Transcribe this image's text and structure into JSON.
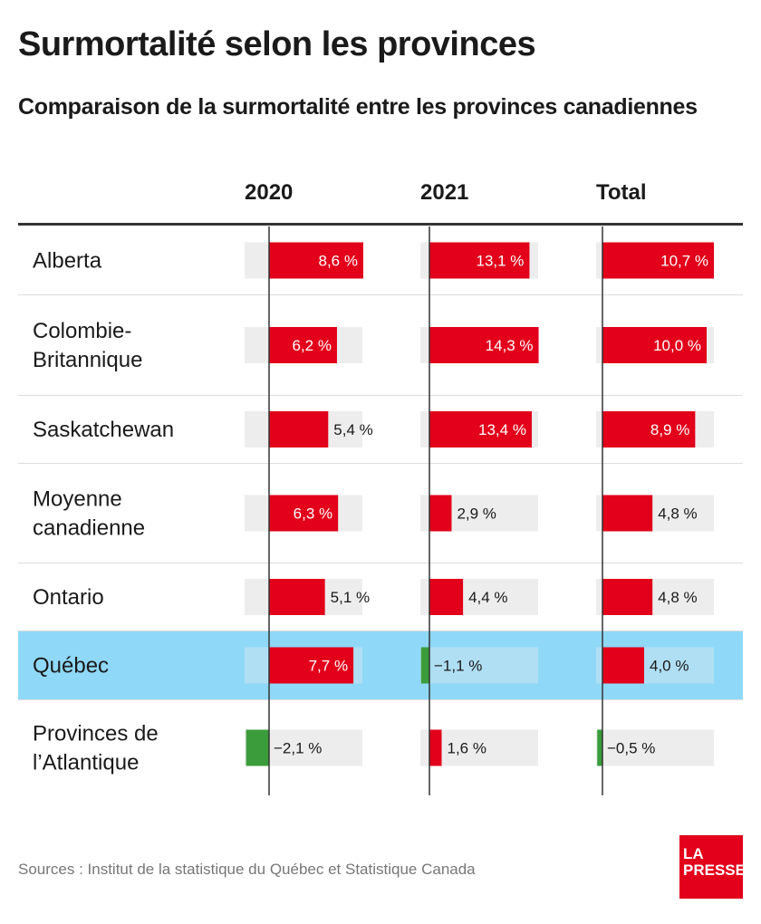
{
  "title": "Surmortalité selon les provinces",
  "subtitle": "Comparaison de la surmortalité entre les provinces canadiennes",
  "source": "Sources : Institut de la statistique du Québec et Statistique Canada",
  "logo": {
    "line1": "LA",
    "line2": "PRESSE"
  },
  "colors": {
    "positive": "#e2001a",
    "negative": "#3a9c3a",
    "track": "#ededed",
    "highlight": "#8fd8f8",
    "axis": "#333333"
  },
  "chart_data": {
    "type": "bar",
    "columns": [
      "2020",
      "2021",
      "Total"
    ],
    "categories": [
      "Alberta",
      "Colombie-\nBritannique",
      "Saskatchewan",
      "Moyenne\ncanadienne",
      "Ontario",
      "Québec",
      "Provinces de\nl’Atlantique"
    ],
    "highlight": "Québec",
    "series": [
      {
        "name": "2020",
        "values": [
          8.6,
          6.2,
          5.4,
          6.3,
          5.1,
          7.7,
          -2.1
        ],
        "labels": [
          "8,6 %",
          "6,2 %",
          "5,4 %",
          "6,3 %",
          "5,1 %",
          "7,7 %",
          "−2,1 %"
        ]
      },
      {
        "name": "2021",
        "values": [
          13.1,
          14.3,
          13.4,
          2.9,
          4.4,
          -1.1,
          1.6
        ],
        "labels": [
          "13,1 %",
          "14,3 %",
          "13,4 %",
          "2,9 %",
          "4,4 %",
          "−1,1 %",
          "1,6 %"
        ]
      },
      {
        "name": "Total",
        "values": [
          10.7,
          10.0,
          8.9,
          4.8,
          4.8,
          4.0,
          -0.5
        ],
        "labels": [
          "10,7 %",
          "10,0 %",
          "8,9 %",
          "4,8 %",
          "4,8 %",
          "4,0 %",
          "−0,5 %"
        ]
      }
    ]
  }
}
